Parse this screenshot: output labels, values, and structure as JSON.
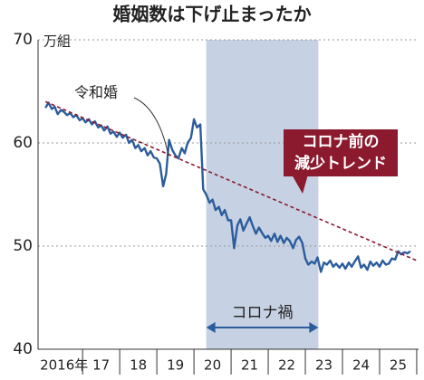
{
  "chart_data": {
    "type": "line",
    "title": "婚姻数は下げ止まったか",
    "y_unit": "万組",
    "ylim": [
      40,
      70
    ],
    "yticks": [
      40,
      50,
      60,
      70
    ],
    "grid": true,
    "xlim": [
      2015.8,
      2026.05
    ],
    "xticks": [
      {
        "value": 2016.5,
        "label": "2016年"
      },
      {
        "value": 2017.5,
        "label": "17"
      },
      {
        "value": 2018.5,
        "label": "18"
      },
      {
        "value": 2019.5,
        "label": "19"
      },
      {
        "value": 2020.5,
        "label": "20"
      },
      {
        "value": 2021.5,
        "label": "21"
      },
      {
        "value": 2022.5,
        "label": "22"
      },
      {
        "value": 2023.5,
        "label": "23"
      },
      {
        "value": 2024.5,
        "label": "24"
      },
      {
        "value": 2025.5,
        "label": "25"
      }
    ],
    "shade": {
      "range": [
        2020.33,
        2023.35
      ],
      "label": "コロナ禍",
      "color": "#c6d1e3"
    },
    "reiwa_label": "令和婚",
    "series": [
      {
        "color": "#2b5c9c",
        "x": [
          2016.0,
          2016.08,
          2016.17,
          2016.25,
          2016.33,
          2016.42,
          2016.5,
          2016.58,
          2016.67,
          2016.75,
          2016.83,
          2016.92,
          2017.0,
          2017.08,
          2017.17,
          2017.25,
          2017.33,
          2017.42,
          2017.5,
          2017.58,
          2017.67,
          2017.75,
          2017.83,
          2017.92,
          2018.0,
          2018.08,
          2018.17,
          2018.25,
          2018.33,
          2018.42,
          2018.5,
          2018.58,
          2018.67,
          2018.75,
          2018.83,
          2018.92,
          2019.0,
          2019.08,
          2019.17,
          2019.25,
          2019.33,
          2019.42,
          2019.5,
          2019.58,
          2019.67,
          2019.75,
          2019.83,
          2019.92,
          2020.0,
          2020.08,
          2020.17,
          2020.25,
          2020.33,
          2020.42,
          2020.5,
          2020.58,
          2020.67,
          2020.75,
          2020.83,
          2020.92,
          2021.0,
          2021.08,
          2021.17,
          2021.25,
          2021.33,
          2021.42,
          2021.5,
          2021.58,
          2021.67,
          2021.75,
          2021.83,
          2021.92,
          2022.0,
          2022.08,
          2022.17,
          2022.25,
          2022.33,
          2022.42,
          2022.5,
          2022.58,
          2022.67,
          2022.75,
          2022.83,
          2022.92,
          2023.0,
          2023.08,
          2023.17,
          2023.25,
          2023.33,
          2023.42,
          2023.5,
          2023.58,
          2023.67,
          2023.75,
          2023.83,
          2023.92,
          2024.0,
          2024.08,
          2024.17,
          2024.25,
          2024.33,
          2024.42,
          2024.5,
          2024.58,
          2024.67,
          2024.75,
          2024.83,
          2024.92,
          2025.0,
          2025.08,
          2025.17,
          2025.25,
          2025.33,
          2025.42,
          2025.5,
          2025.58,
          2025.67,
          2025.75,
          2025.83
        ],
        "values": [
          63.4,
          63.9,
          63.3,
          63.5,
          62.8,
          63.2,
          63.0,
          62.7,
          62.9,
          62.5,
          62.7,
          62.2,
          62.4,
          62.0,
          62.3,
          61.8,
          62.1,
          61.5,
          61.7,
          61.2,
          61.6,
          60.9,
          61.1,
          60.6,
          61.0,
          60.5,
          60.8,
          60.0,
          60.3,
          59.5,
          59.8,
          59.2,
          59.5,
          58.8,
          59.2,
          58.6,
          58.5,
          58.0,
          55.8,
          57.0,
          60.3,
          59.3,
          58.8,
          58.5,
          59.5,
          59.0,
          60.0,
          60.5,
          62.3,
          61.5,
          61.8,
          55.5,
          55.0,
          54.2,
          54.5,
          53.5,
          53.8,
          53.0,
          53.5,
          52.5,
          52.5,
          49.8,
          52.0,
          52.6,
          51.5,
          52.2,
          52.8,
          52.0,
          51.2,
          51.8,
          51.3,
          50.8,
          51.0,
          50.5,
          51.2,
          50.4,
          51.0,
          50.3,
          50.8,
          50.5,
          49.8,
          50.6,
          50.9,
          50.3,
          48.8,
          48.2,
          48.5,
          48.3,
          48.9,
          47.5,
          48.4,
          48.2,
          48.6,
          48.0,
          48.3,
          47.9,
          48.3,
          47.8,
          48.4,
          48.0,
          48.5,
          49.0,
          47.9,
          48.2,
          47.7,
          48.5,
          48.1,
          48.4,
          48.0,
          48.6,
          48.2,
          48.3,
          48.8,
          48.7,
          49.5,
          49.2,
          49.4,
          49.3,
          49.5
        ]
      },
      {
        "color": "#8b1a2e",
        "dashed": true,
        "label": [
          "コロナ前の",
          "減少トレンド"
        ],
        "x": [
          2016.0,
          2026.0
        ],
        "values": [
          64.0,
          48.6
        ]
      }
    ]
  }
}
